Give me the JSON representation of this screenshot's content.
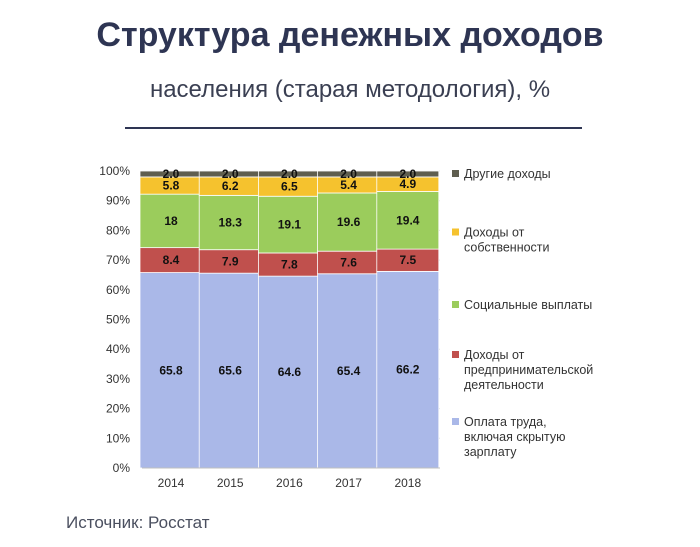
{
  "header": {
    "title": "Структура денежных доходов",
    "subtitle": "населения (старая методология), %"
  },
  "footer": {
    "source": "Источник: Росстат"
  },
  "chart_data": {
    "type": "bar",
    "stacked": true,
    "categories": [
      "2014",
      "2015",
      "2016",
      "2017",
      "2018"
    ],
    "ylim": [
      0,
      100
    ],
    "yticks": [
      "0%",
      "10%",
      "20%",
      "30%",
      "40%",
      "50%",
      "60%",
      "70%",
      "80%",
      "90%",
      "100%"
    ],
    "grid": true,
    "legend_position": "right",
    "series": [
      {
        "name": "Оплата труда, включая скрытую зарплату",
        "color": "#aab8e8",
        "values": [
          65.8,
          65.6,
          64.6,
          65.4,
          66.2
        ],
        "labels": [
          "65.8",
          "65.6",
          "64.6",
          "65.4",
          "66.2"
        ]
      },
      {
        "name": "Доходы от предпринимательской деятельности",
        "color": "#c0504d",
        "values": [
          8.4,
          7.9,
          7.8,
          7.6,
          7.5
        ],
        "labels": [
          "8.4",
          "7.9",
          "7.8",
          "7.6",
          "7.5"
        ]
      },
      {
        "name": "Социальные выплаты",
        "color": "#9bcc5c",
        "values": [
          18,
          18.3,
          19.1,
          19.6,
          19.4
        ],
        "labels": [
          "18",
          "18.3",
          "19.1",
          "19.6",
          "19.4"
        ]
      },
      {
        "name": "Доходы от собственности",
        "color": "#f5c22e",
        "values": [
          5.8,
          6.2,
          6.5,
          5.4,
          4.9
        ],
        "labels": [
          "5.8",
          "6.2",
          "6.5",
          "5.4",
          "4.9"
        ]
      },
      {
        "name": "Другие доходы",
        "color": "#5f5e4f",
        "values": [
          2.0,
          2.0,
          2.0,
          2.0,
          2.0
        ],
        "labels": [
          "2.0",
          "2.0",
          "2.0",
          "2.0",
          "2.0"
        ]
      }
    ],
    "legend_lines": [
      [
        "Другие доходы"
      ],
      [
        "Доходы от",
        "собственности"
      ],
      [
        "Социальные выплаты"
      ],
      [
        "Доходы от",
        "предпринимательской",
        "деятельности"
      ],
      [
        "Оплата труда,",
        "включая скрытую",
        "зарплату"
      ]
    ]
  }
}
